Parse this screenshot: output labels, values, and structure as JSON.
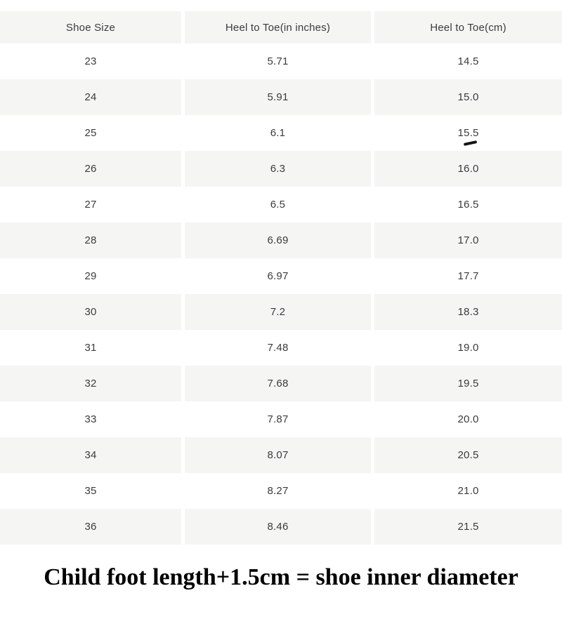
{
  "table": {
    "columns": [
      "Shoe Size",
      "Heel to Toe(in inches)",
      "Heel to Toe(cm)"
    ],
    "rows": [
      [
        "23",
        "5.71",
        "14.5"
      ],
      [
        "24",
        "5.91",
        "15.0"
      ],
      [
        "25",
        "6.1",
        "15.5"
      ],
      [
        "26",
        "6.3",
        "16.0"
      ],
      [
        "27",
        "6.5",
        "16.5"
      ],
      [
        "28",
        "6.69",
        "17.0"
      ],
      [
        "29",
        "6.97",
        "17.7"
      ],
      [
        "30",
        "7.2",
        "18.3"
      ],
      [
        "31",
        "7.48",
        "19.0"
      ],
      [
        "32",
        "7.68",
        "19.5"
      ],
      [
        "33",
        "7.87",
        "20.0"
      ],
      [
        "34",
        "8.07",
        "20.5"
      ],
      [
        "35",
        "8.27",
        "21.0"
      ],
      [
        "36",
        "8.46",
        "21.5"
      ]
    ],
    "pen_mark": {
      "row": "25",
      "column": "Heel to Toe(cm)",
      "description": "short handwritten black dash under the value 15.5"
    }
  },
  "caption": "Child foot length+1.5cm = shoe inner diameter",
  "colors": {
    "row_stripe": "#f5f5f4",
    "header_bg": "#f5f5f4",
    "text": "#3b3b3d",
    "caption_text": "#000000",
    "page_bg": "#ffffff"
  },
  "chart_data": {
    "type": "table",
    "title": "Child shoe size conversion chart",
    "columns": [
      "Shoe Size",
      "Heel to Toe(in inches)",
      "Heel to Toe(cm)"
    ],
    "shoe_sizes": [
      23,
      24,
      25,
      26,
      27,
      28,
      29,
      30,
      31,
      32,
      33,
      34,
      35,
      36
    ],
    "heel_to_toe_inches": [
      5.71,
      5.91,
      6.1,
      6.3,
      6.5,
      6.69,
      6.97,
      7.2,
      7.48,
      7.68,
      7.87,
      8.07,
      8.27,
      8.46
    ],
    "heel_to_toe_cm": [
      14.5,
      15.0,
      15.5,
      16.0,
      16.5,
      17.0,
      17.7,
      18.3,
      19.0,
      19.5,
      20.0,
      20.5,
      21.0,
      21.5
    ]
  }
}
